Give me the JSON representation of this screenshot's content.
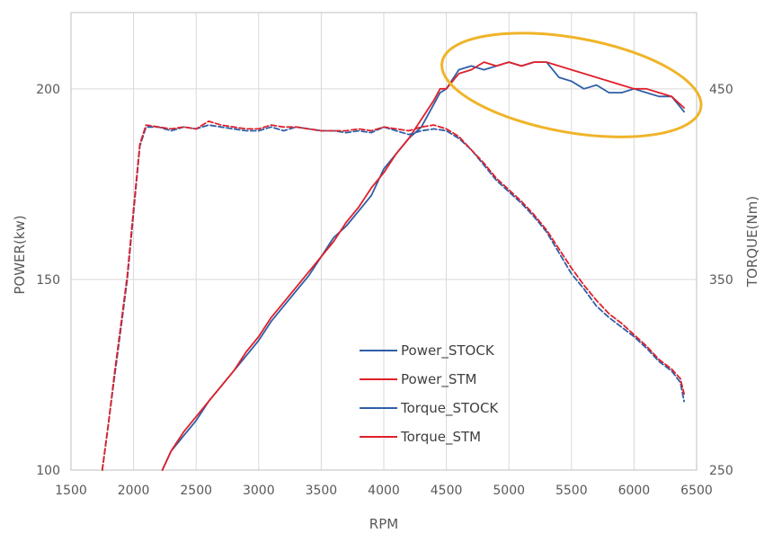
{
  "chart_data": {
    "type": "line",
    "title": "",
    "xlabel": "RPM",
    "ylabel_left": "POWER(kw)",
    "ylabel_right": "TORQUE(Nm)",
    "xlim": [
      1500,
      6500
    ],
    "ylim_left": [
      100,
      220
    ],
    "ylim_right": [
      250,
      490
    ],
    "x_ticks": [
      1500,
      2000,
      2500,
      3000,
      3500,
      4000,
      4500,
      5000,
      5500,
      6000,
      6500
    ],
    "y_left_ticks": [
      100,
      150,
      200
    ],
    "y_right_ticks": [
      250,
      350,
      450
    ],
    "grid": true,
    "legend_position": "center-bottom",
    "colors": {
      "stock": "#2e5fa8",
      "stm": "#e0202a",
      "highlight": "#f0b429"
    },
    "series": [
      {
        "name": "Power_STOCK",
        "axis": "left",
        "dash": false,
        "color": "#2e5fa8",
        "x": [
          2230,
          2300,
          2400,
          2500,
          2600,
          2700,
          2800,
          2900,
          3000,
          3100,
          3200,
          3300,
          3400,
          3500,
          3600,
          3700,
          3800,
          3900,
          4000,
          4100,
          4200,
          4300,
          4400,
          4450,
          4500,
          4600,
          4700,
          4800,
          4900,
          5000,
          5100,
          5200,
          5300,
          5400,
          5500,
          5600,
          5700,
          5800,
          5900,
          6000,
          6100,
          6200,
          6300,
          6400
        ],
        "y": [
          100,
          105,
          109,
          113,
          118,
          122,
          126,
          130,
          134,
          139,
          143,
          147,
          151,
          156,
          161,
          164,
          168,
          172,
          179,
          183,
          187,
          190,
          196,
          199,
          200,
          205,
          206,
          205,
          206,
          207,
          206,
          207,
          207,
          203,
          202,
          200,
          201,
          199,
          199,
          200,
          199,
          198,
          198,
          194
        ]
      },
      {
        "name": "Power_STM",
        "axis": "left",
        "dash": false,
        "color": "#e0202a",
        "x": [
          2230,
          2300,
          2400,
          2500,
          2600,
          2700,
          2800,
          2900,
          3000,
          3100,
          3200,
          3300,
          3400,
          3500,
          3600,
          3700,
          3800,
          3900,
          4000,
          4100,
          4200,
          4300,
          4400,
          4450,
          4500,
          4600,
          4700,
          4800,
          4900,
          5000,
          5100,
          5200,
          5300,
          5400,
          5500,
          5600,
          5700,
          5800,
          5900,
          6000,
          6100,
          6200,
          6300,
          6400
        ],
        "y": [
          100,
          105,
          110,
          114,
          118,
          122,
          126,
          131,
          135,
          140,
          144,
          148,
          152,
          156,
          160,
          165,
          169,
          174,
          178,
          183,
          187,
          192,
          197,
          200,
          200,
          204,
          205,
          207,
          206,
          207,
          206,
          207,
          207,
          206,
          205,
          204,
          203,
          202,
          201,
          200,
          200,
          199,
          198,
          195
        ]
      },
      {
        "name": "Torque_STOCK",
        "axis": "right",
        "dash": true,
        "color": "#2e5fa8",
        "x": [
          1750,
          1800,
          1850,
          1900,
          1950,
          2000,
          2050,
          2100,
          2200,
          2300,
          2400,
          2500,
          2600,
          2700,
          2800,
          2900,
          3000,
          3100,
          3200,
          3300,
          3400,
          3500,
          3600,
          3700,
          3800,
          3900,
          4000,
          4100,
          4200,
          4300,
          4400,
          4500,
          4600,
          4700,
          4800,
          4900,
          5000,
          5100,
          5200,
          5300,
          5400,
          5500,
          5600,
          5700,
          5800,
          5900,
          6000,
          6100,
          6200,
          6300,
          6370,
          6400
        ],
        "y": [
          250,
          275,
          300,
          325,
          350,
          385,
          420,
          430,
          430,
          428,
          430,
          429,
          431,
          430,
          429,
          428,
          428,
          430,
          428,
          430,
          429,
          428,
          428,
          427,
          428,
          427,
          430,
          428,
          426,
          428,
          429,
          428,
          424,
          418,
          410,
          402,
          396,
          390,
          383,
          375,
          364,
          353,
          345,
          336,
          330,
          325,
          320,
          314,
          307,
          302,
          296,
          286
        ]
      },
      {
        "name": "Torque_STM",
        "axis": "right",
        "dash": true,
        "color": "#e0202a",
        "x": [
          1750,
          1800,
          1850,
          1900,
          1950,
          2000,
          2050,
          2100,
          2200,
          2300,
          2400,
          2500,
          2600,
          2700,
          2800,
          2900,
          3000,
          3100,
          3200,
          3300,
          3400,
          3500,
          3600,
          3700,
          3800,
          3900,
          4000,
          4100,
          4200,
          4300,
          4400,
          4500,
          4600,
          4700,
          4800,
          4900,
          5000,
          5100,
          5200,
          5300,
          5400,
          5500,
          5600,
          5700,
          5800,
          5900,
          6000,
          6100,
          6200,
          6300,
          6370,
          6400
        ],
        "y": [
          250,
          275,
          302,
          327,
          352,
          387,
          421,
          431,
          430,
          429,
          430,
          429,
          433,
          431,
          430,
          429,
          429,
          431,
          430,
          430,
          429,
          428,
          428,
          428,
          429,
          428,
          430,
          429,
          428,
          430,
          431,
          429,
          425,
          418,
          411,
          403,
          397,
          391,
          384,
          376,
          366,
          356,
          347,
          339,
          332,
          327,
          321,
          315,
          308,
          303,
          298,
          290
        ]
      }
    ],
    "annotations": [
      {
        "type": "ellipse",
        "color": "#f0b429",
        "x_range": [
          4450,
          6550
        ],
        "y_left_range": [
          190,
          212
        ]
      }
    ]
  }
}
